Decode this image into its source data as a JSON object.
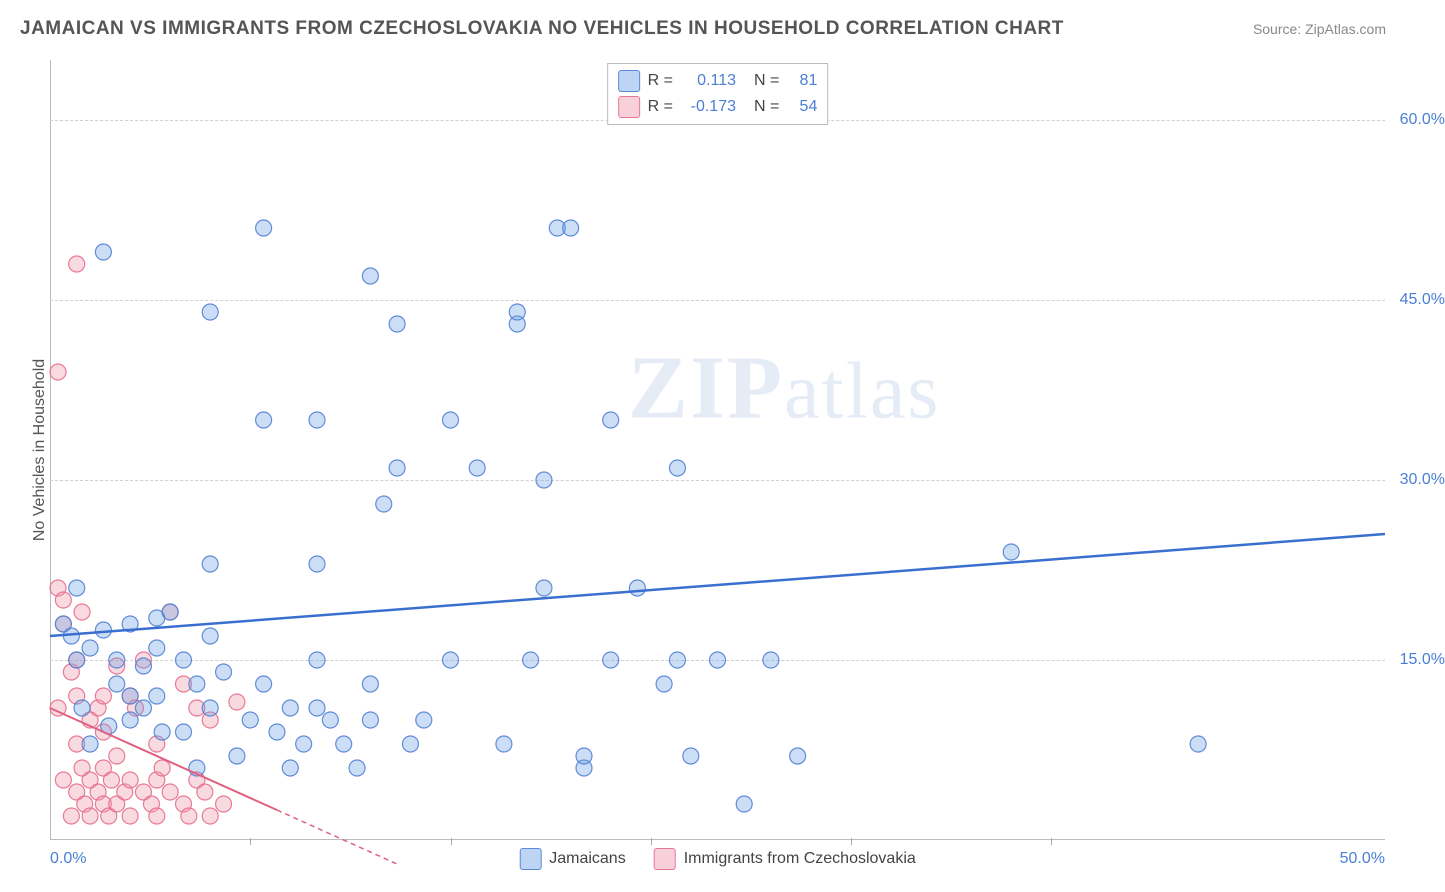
{
  "header": {
    "title": "JAMAICAN VS IMMIGRANTS FROM CZECHOSLOVAKIA NO VEHICLES IN HOUSEHOLD CORRELATION CHART",
    "source": "Source: ZipAtlas.com"
  },
  "chart": {
    "type": "scatter",
    "y_axis_label": "No Vehicles in Household",
    "xlim": [
      0,
      50
    ],
    "ylim": [
      0,
      65
    ],
    "x_ticks": [
      0,
      7.5,
      15,
      22.5,
      30,
      37.5,
      50
    ],
    "x_tick_labels": {
      "0": "0.0%",
      "50": "50.0%"
    },
    "y_ticks": [
      15,
      30,
      45,
      60
    ],
    "y_tick_labels": [
      "15.0%",
      "30.0%",
      "45.0%",
      "60.0%"
    ],
    "grid_color": "#d0d0d0",
    "background_color": "#ffffff",
    "tick_label_color": "#4a7fd6",
    "marker_radius": 8,
    "series": {
      "blue": {
        "name": "Jamaicans",
        "R": "0.113",
        "N": "81",
        "fill": "rgba(110,160,230,0.35)",
        "stroke": "rgba(80,130,210,0.9)",
        "trend_color": "#3a6fd0",
        "trend": {
          "x1": 0,
          "y1": 17.0,
          "x2": 50,
          "y2": 25.5
        },
        "points": [
          [
            0.5,
            18
          ],
          [
            0.8,
            17
          ],
          [
            1,
            15
          ],
          [
            1,
            21
          ],
          [
            1.2,
            11
          ],
          [
            1.5,
            8
          ],
          [
            1.5,
            16
          ],
          [
            2,
            49
          ],
          [
            2,
            17.5
          ],
          [
            2.5,
            15
          ],
          [
            2.5,
            13
          ],
          [
            3,
            18
          ],
          [
            3,
            10
          ],
          [
            3.5,
            11
          ],
          [
            3.5,
            14.5
          ],
          [
            4,
            18.5
          ],
          [
            4,
            16
          ],
          [
            4,
            12
          ],
          [
            4.5,
            19
          ],
          [
            5,
            9
          ],
          [
            5,
            15
          ],
          [
            5.5,
            6
          ],
          [
            5.5,
            13
          ],
          [
            6,
            44
          ],
          [
            6,
            23
          ],
          [
            6,
            17
          ],
          [
            6,
            11
          ],
          [
            6.5,
            14
          ],
          [
            7,
            7
          ],
          [
            7.5,
            10
          ],
          [
            8,
            51
          ],
          [
            8,
            35
          ],
          [
            8,
            13
          ],
          [
            8.5,
            9
          ],
          [
            9,
            11
          ],
          [
            9,
            6
          ],
          [
            9.5,
            8
          ],
          [
            10,
            35
          ],
          [
            10,
            23
          ],
          [
            10,
            15
          ],
          [
            10,
            11
          ],
          [
            10.5,
            10
          ],
          [
            11,
            8
          ],
          [
            11.5,
            6
          ],
          [
            12,
            47
          ],
          [
            12,
            13
          ],
          [
            12,
            10
          ],
          [
            12.5,
            28
          ],
          [
            13,
            43
          ],
          [
            13,
            31
          ],
          [
            13.5,
            8
          ],
          [
            14,
            10
          ],
          [
            15,
            35
          ],
          [
            15,
            15
          ],
          [
            16,
            31
          ],
          [
            17,
            8
          ],
          [
            17.5,
            43
          ],
          [
            17.5,
            44
          ],
          [
            18,
            15
          ],
          [
            18.5,
            30
          ],
          [
            18.5,
            21
          ],
          [
            19,
            51
          ],
          [
            19.5,
            51
          ],
          [
            20,
            6
          ],
          [
            20,
            7
          ],
          [
            21,
            35
          ],
          [
            21,
            15
          ],
          [
            22,
            21
          ],
          [
            23,
            13
          ],
          [
            23.5,
            31
          ],
          [
            23.5,
            15
          ],
          [
            24,
            7
          ],
          [
            25,
            15
          ],
          [
            26,
            3
          ],
          [
            27,
            15
          ],
          [
            28,
            7
          ],
          [
            36,
            24
          ],
          [
            43,
            8
          ],
          [
            3,
            12
          ],
          [
            4.2,
            9
          ],
          [
            2.2,
            9.5
          ]
        ]
      },
      "pink": {
        "name": "Immigrants from Czechoslovakia",
        "R": "-0.173",
        "N": "54",
        "fill": "rgba(240,150,170,0.35)",
        "stroke": "rgba(230,110,140,0.9)",
        "trend_color": "#e06080",
        "trend_solid": {
          "x1": 0,
          "y1": 11.0,
          "x2": 8.5,
          "y2": 2.5
        },
        "trend_dash": {
          "x1": 8.5,
          "y1": 2.5,
          "x2": 13,
          "y2": -2
        },
        "points": [
          [
            0.3,
            39
          ],
          [
            0.3,
            21
          ],
          [
            0.3,
            11
          ],
          [
            0.5,
            5
          ],
          [
            0.5,
            20
          ],
          [
            0.5,
            18
          ],
          [
            0.8,
            2
          ],
          [
            0.8,
            14
          ],
          [
            1,
            48
          ],
          [
            1,
            15
          ],
          [
            1,
            12
          ],
          [
            1,
            8
          ],
          [
            1,
            4
          ],
          [
            1.2,
            19
          ],
          [
            1.2,
            6
          ],
          [
            1.3,
            3
          ],
          [
            1.5,
            10
          ],
          [
            1.5,
            2
          ],
          [
            1.5,
            5
          ],
          [
            1.8,
            11
          ],
          [
            1.8,
            4
          ],
          [
            2,
            12
          ],
          [
            2,
            9
          ],
          [
            2,
            6
          ],
          [
            2,
            3
          ],
          [
            2.2,
            2
          ],
          [
            2.3,
            5
          ],
          [
            2.5,
            7
          ],
          [
            2.5,
            3
          ],
          [
            2.5,
            14.5
          ],
          [
            2.8,
            4
          ],
          [
            3,
            12
          ],
          [
            3,
            5
          ],
          [
            3,
            2
          ],
          [
            3.2,
            11
          ],
          [
            3.5,
            4
          ],
          [
            3.5,
            15
          ],
          [
            3.8,
            3
          ],
          [
            4,
            8
          ],
          [
            4,
            5
          ],
          [
            4,
            2
          ],
          [
            4.2,
            6
          ],
          [
            4.5,
            4
          ],
          [
            4.5,
            19
          ],
          [
            5,
            13
          ],
          [
            5,
            3
          ],
          [
            5.2,
            2
          ],
          [
            5.5,
            5
          ],
          [
            5.5,
            11
          ],
          [
            5.8,
            4
          ],
          [
            6,
            10
          ],
          [
            6,
            2
          ],
          [
            6.5,
            3
          ],
          [
            7,
            11.5
          ]
        ]
      }
    },
    "watermark": {
      "text_bold": "ZIP",
      "text_light": "atlas"
    },
    "legend_bottom": [
      "Jamaicans",
      "Immigrants from Czechoslovakia"
    ]
  }
}
